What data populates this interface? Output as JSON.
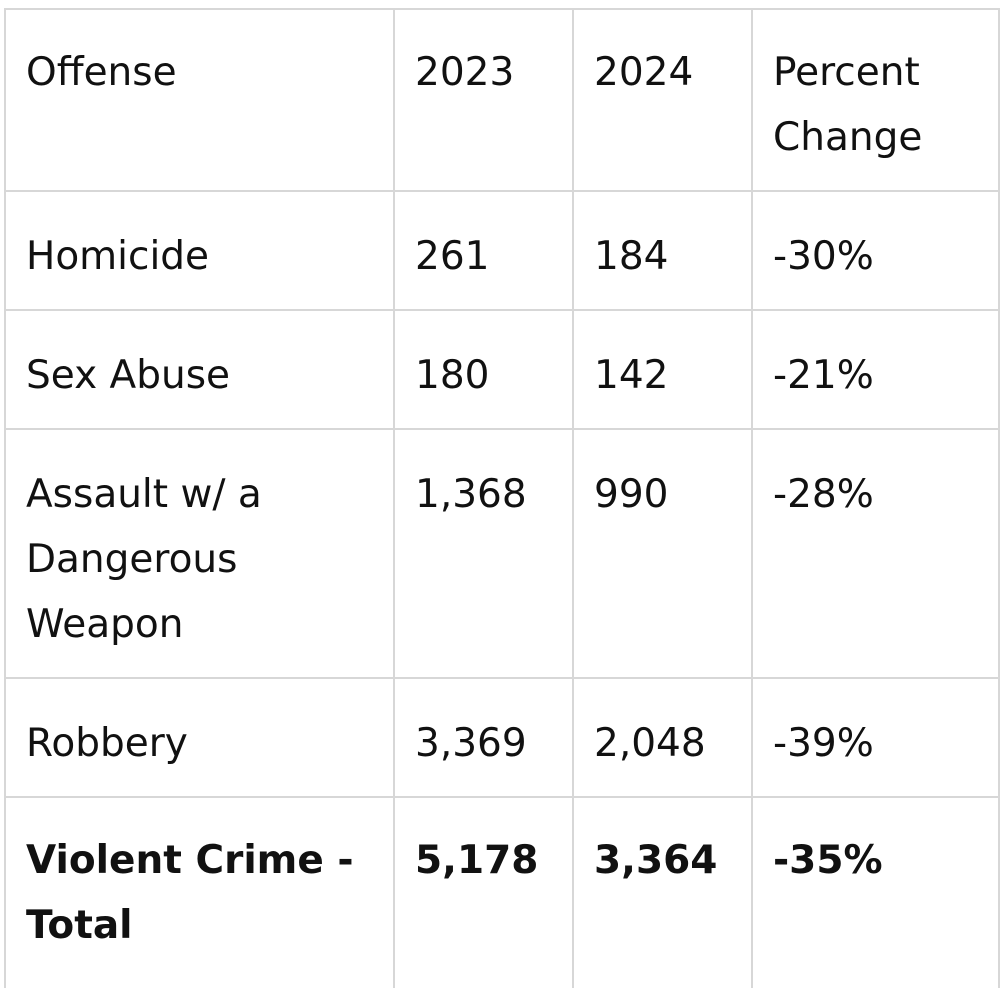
{
  "table": {
    "headers": [
      "Offense",
      "2023",
      "2024",
      "Percent Change"
    ],
    "rows": [
      [
        "Homicide",
        "261",
        "184",
        "-30%"
      ],
      [
        "Sex Abuse",
        "180",
        "142",
        "-21%"
      ],
      [
        "Assault w/ a Dangerous Weapon",
        "1,368",
        "990",
        "-28%"
      ],
      [
        "Robbery",
        "3,369",
        "2,048",
        "-39%"
      ],
      [
        "Violent Crime - Total",
        "5,178",
        "3,364",
        "-35%"
      ]
    ]
  }
}
